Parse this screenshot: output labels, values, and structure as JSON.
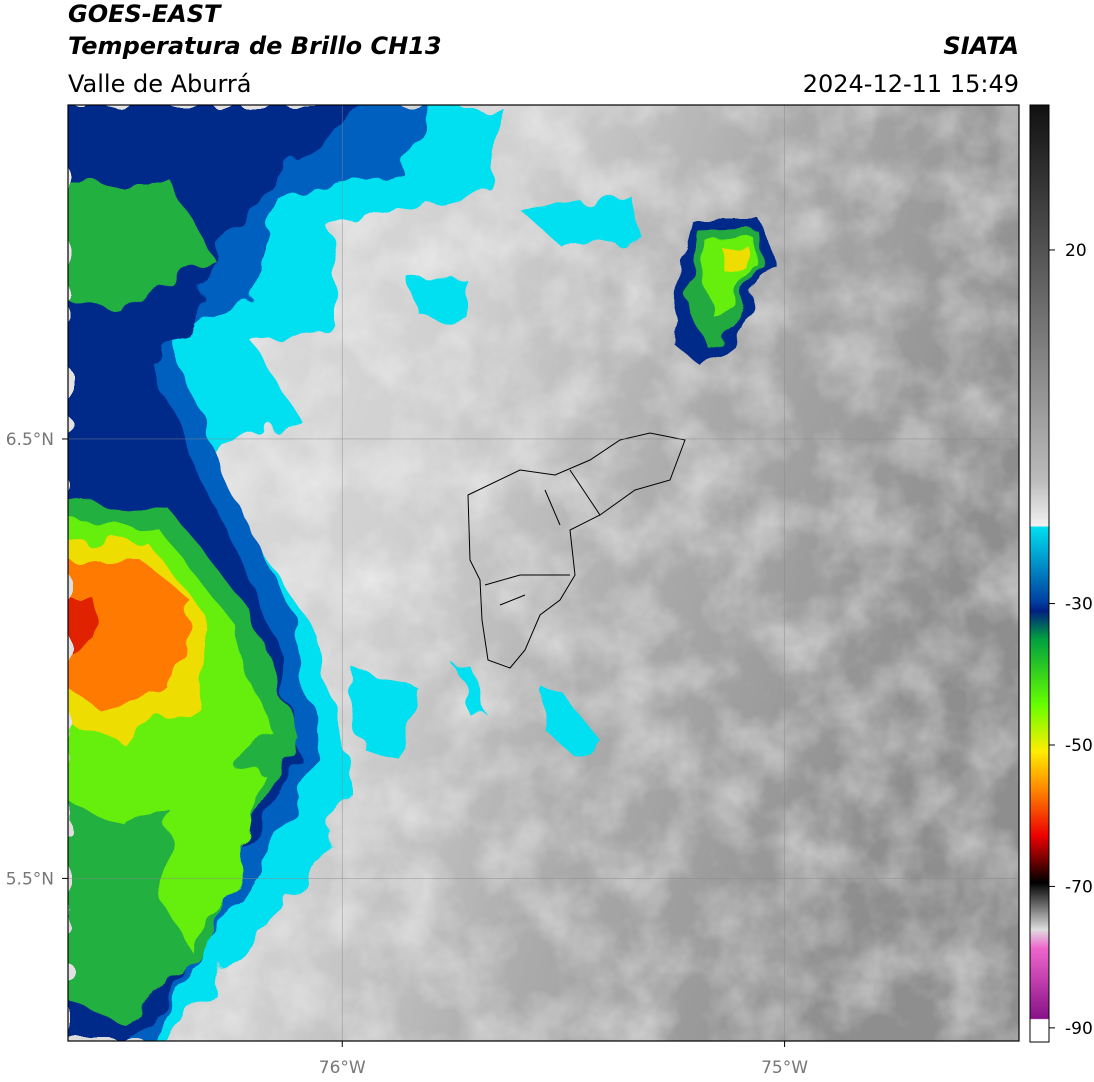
{
  "header": {
    "title": "GOES-EAST",
    "subtitle": "Temperatura de Brillo CH13",
    "region": "Valle de Aburrá",
    "source": "SIATA",
    "datetime": "2024-12-11 15:49"
  },
  "map": {
    "xlim": [
      -76.62,
      -74.47
    ],
    "ylim": [
      5.13,
      7.26
    ],
    "xticks": [
      {
        "value": -76,
        "label": "76°W"
      },
      {
        "value": -75,
        "label": "75°W"
      }
    ],
    "yticks": [
      {
        "value": 6.5,
        "label": "6.5°N"
      },
      {
        "value": 5.5,
        "label": "5.5°N"
      }
    ]
  },
  "colorbar": {
    "ylim": [
      -92,
      40.5
    ],
    "yticks": [
      20,
      -30,
      -50,
      -70,
      -90
    ]
  }
}
